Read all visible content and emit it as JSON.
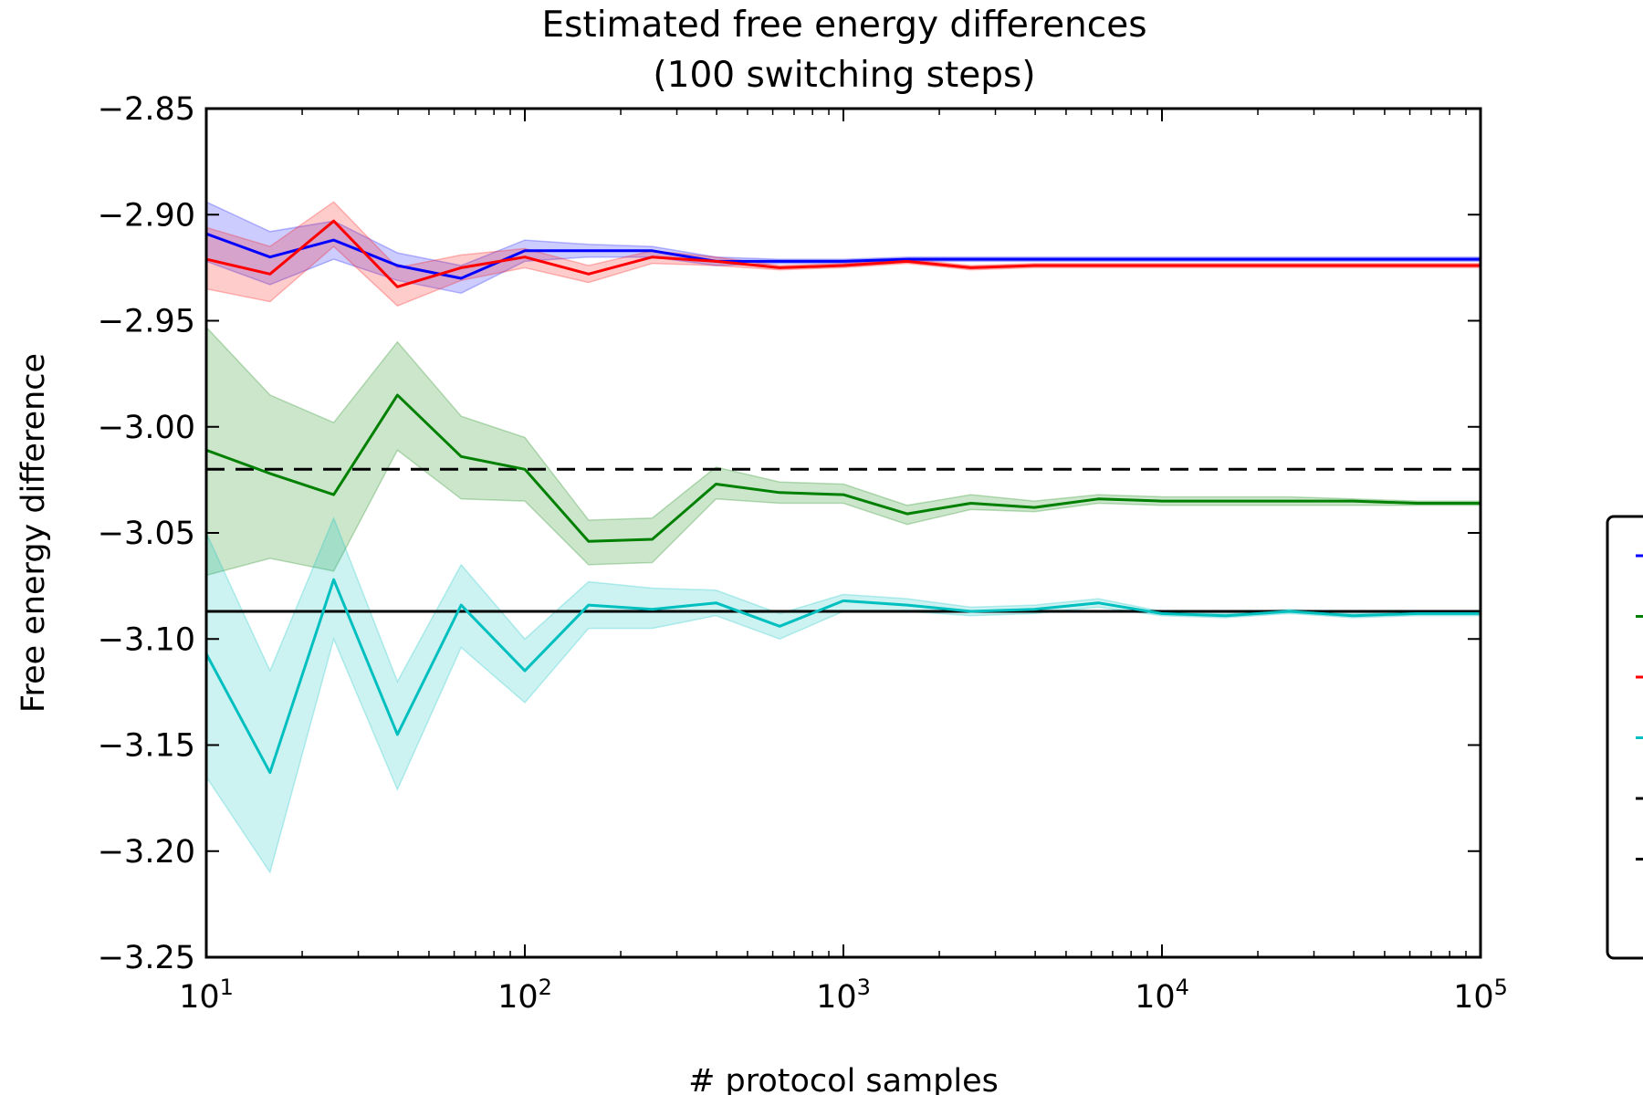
{
  "chart_data": {
    "type": "line",
    "title": "Estimated free energy differences",
    "subtitle": "(100 switching steps)",
    "xlabel": "# protocol samples",
    "ylabel": "Free energy difference",
    "xscale": "log",
    "xlim": [
      10,
      100000
    ],
    "ylim": [
      -3.25,
      -2.85
    ],
    "grid": false,
    "legend": "right, outside plot, labels cut off",
    "x": [
      10,
      15.85,
      25.12,
      39.81,
      63.1,
      100,
      158.5,
      251.2,
      398.1,
      631,
      1000,
      1585,
      2512,
      3981,
      6310,
      10000,
      15850,
      25120,
      39810,
      63100,
      100000
    ],
    "y_ticks": [
      "−2.85",
      "−2.90",
      "−2.95",
      "−3.00",
      "−3.05",
      "−3.10",
      "−3.15",
      "−3.20",
      "−3.25"
    ],
    "x_ticks": [
      {
        "base": "10",
        "exp": "1"
      },
      {
        "base": "10",
        "exp": "2"
      },
      {
        "base": "10",
        "exp": "3"
      },
      {
        "base": "10",
        "exp": "4"
      },
      {
        "base": "10",
        "exp": "5"
      }
    ],
    "series": [
      {
        "color": "#0000ff",
        "values": [
          -2.909,
          -2.92,
          -2.912,
          -2.924,
          -2.93,
          -2.917,
          -2.917,
          -2.917,
          -2.922,
          -2.922,
          -2.922,
          -2.921,
          -2.921,
          -2.921,
          -2.921,
          -2.921,
          -2.921,
          -2.921,
          -2.921,
          -2.921,
          -2.921
        ],
        "lower": [
          -2.922,
          -2.933,
          -2.921,
          -2.931,
          -2.937,
          -2.922,
          -2.92,
          -2.92,
          -2.924,
          -2.923,
          -2.923,
          -2.922,
          -2.922,
          -2.922,
          -2.922,
          -2.922,
          -2.922,
          -2.922,
          -2.922,
          -2.922,
          -2.922
        ],
        "upper": [
          -2.894,
          -2.908,
          -2.903,
          -2.918,
          -2.924,
          -2.912,
          -2.914,
          -2.915,
          -2.92,
          -2.921,
          -2.921,
          -2.92,
          -2.92,
          -2.92,
          -2.92,
          -2.92,
          -2.92,
          -2.92,
          -2.92,
          -2.92,
          -2.92
        ]
      },
      {
        "color": "#ff0000",
        "values": [
          -2.921,
          -2.928,
          -2.903,
          -2.934,
          -2.925,
          -2.92,
          -2.928,
          -2.92,
          -2.922,
          -2.925,
          -2.924,
          -2.922,
          -2.925,
          -2.924,
          -2.924,
          -2.924,
          -2.924,
          -2.924,
          -2.924,
          -2.924,
          -2.924
        ],
        "lower": [
          -2.935,
          -2.941,
          -2.915,
          -2.943,
          -2.931,
          -2.925,
          -2.932,
          -2.923,
          -2.924,
          -2.926,
          -2.925,
          -2.923,
          -2.926,
          -2.925,
          -2.925,
          -2.925,
          -2.925,
          -2.925,
          -2.925,
          -2.925,
          -2.925
        ],
        "upper": [
          -2.906,
          -2.915,
          -2.894,
          -2.925,
          -2.919,
          -2.916,
          -2.924,
          -2.917,
          -2.92,
          -2.924,
          -2.923,
          -2.921,
          -2.924,
          -2.923,
          -2.923,
          -2.923,
          -2.923,
          -2.923,
          -2.923,
          -2.923,
          -2.923
        ]
      },
      {
        "color": "#008000",
        "values": [
          -3.011,
          -3.022,
          -3.032,
          -2.985,
          -3.014,
          -3.02,
          -3.054,
          -3.053,
          -3.027,
          -3.031,
          -3.032,
          -3.041,
          -3.036,
          -3.038,
          -3.034,
          -3.035,
          -3.035,
          -3.035,
          -3.035,
          -3.036,
          -3.036
        ],
        "lower": [
          -3.07,
          -3.062,
          -3.068,
          -3.011,
          -3.034,
          -3.035,
          -3.065,
          -3.064,
          -3.034,
          -3.036,
          -3.036,
          -3.046,
          -3.039,
          -3.04,
          -3.036,
          -3.037,
          -3.037,
          -3.037,
          -3.037,
          -3.037,
          -3.037
        ],
        "upper": [
          -2.953,
          -2.985,
          -2.998,
          -2.96,
          -2.995,
          -3.005,
          -3.044,
          -3.043,
          -3.019,
          -3.026,
          -3.027,
          -3.037,
          -3.032,
          -3.035,
          -3.032,
          -3.033,
          -3.033,
          -3.033,
          -3.034,
          -3.035,
          -3.035
        ]
      },
      {
        "color": "#00bfbf",
        "values": [
          -3.107,
          -3.163,
          -3.072,
          -3.145,
          -3.084,
          -3.115,
          -3.084,
          -3.086,
          -3.083,
          -3.094,
          -3.082,
          -3.084,
          -3.087,
          -3.086,
          -3.083,
          -3.088,
          -3.089,
          -3.087,
          -3.089,
          -3.088,
          -3.088
        ],
        "lower": [
          -3.165,
          -3.21,
          -3.1,
          -3.171,
          -3.104,
          -3.13,
          -3.095,
          -3.095,
          -3.089,
          -3.1,
          -3.087,
          -3.087,
          -3.089,
          -3.088,
          -3.085,
          -3.089,
          -3.09,
          -3.088,
          -3.09,
          -3.089,
          -3.089
        ],
        "upper": [
          -3.05,
          -3.115,
          -3.043,
          -3.12,
          -3.065,
          -3.1,
          -3.073,
          -3.076,
          -3.077,
          -3.088,
          -3.079,
          -3.081,
          -3.085,
          -3.084,
          -3.081,
          -3.087,
          -3.088,
          -3.086,
          -3.088,
          -3.087,
          -3.087
        ]
      }
    ],
    "reference_lines": [
      {
        "y": -3.02,
        "style": "dashed",
        "color": "#000000"
      },
      {
        "y": -3.087,
        "style": "solid",
        "color": "#000000"
      }
    ],
    "legend_entries": [
      {
        "color": "#0000ff",
        "style": "solid"
      },
      {
        "color": "#008000",
        "style": "solid"
      },
      {
        "color": "#ff0000",
        "style": "solid"
      },
      {
        "color": "#00bfbf",
        "style": "solid"
      },
      {
        "color": "#000000",
        "style": "solid"
      },
      {
        "color": "#000000",
        "style": "dashed"
      }
    ]
  }
}
